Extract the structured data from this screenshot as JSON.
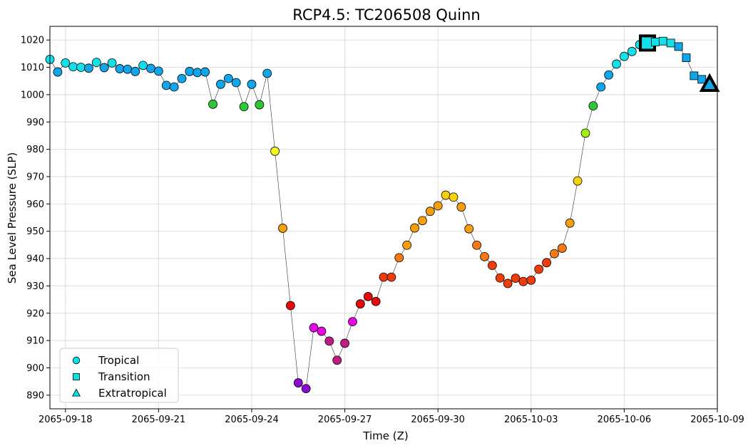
{
  "chart_data": {
    "type": "scatter",
    "title": "RCP4.5: TC206508 Quinn",
    "xlabel": "Time (Z)",
    "ylabel": "Sea Level Pressure (SLP)",
    "xlim": [
      "2065-09-17T12:00",
      "2065-10-09T00:00"
    ],
    "ylim": [
      885,
      1025
    ],
    "x_ticks": [
      "2065-09-18",
      "2065-09-21",
      "2065-09-24",
      "2065-09-27",
      "2065-09-30",
      "2065-10-03",
      "2065-10-06",
      "2065-10-09"
    ],
    "y_ticks": [
      890,
      900,
      910,
      920,
      930,
      940,
      950,
      960,
      970,
      980,
      990,
      1000,
      1010,
      1020
    ],
    "grid": true,
    "legend_position": "bottom-left",
    "legend": [
      {
        "label": "Tropical",
        "marker": "circle"
      },
      {
        "label": "Transition",
        "marker": "square"
      },
      {
        "label": "Extratropical",
        "marker": "triangle"
      }
    ],
    "line_color": "#333333",
    "marker_edge_color": "#000000",
    "legend_marker_color": "#00e5e5",
    "series": [
      {
        "name": "Tropical",
        "marker": "circle",
        "points": [
          {
            "t": "2065-09-17T12:00",
            "y": 1012.9,
            "c": "#14e0ea"
          },
          {
            "t": "2065-09-17T18:00",
            "y": 1008.3,
            "c": "#10a6ec"
          },
          {
            "t": "2065-09-18T00:00",
            "y": 1011.6,
            "c": "#14e0ea"
          },
          {
            "t": "2065-09-18T06:00",
            "y": 1010.2,
            "c": "#14e0ea"
          },
          {
            "t": "2065-09-18T12:00",
            "y": 1010.0,
            "c": "#14e0ea"
          },
          {
            "t": "2065-09-18T18:00",
            "y": 1009.7,
            "c": "#10a6ec"
          },
          {
            "t": "2065-09-19T00:00",
            "y": 1011.8,
            "c": "#14e0ea"
          },
          {
            "t": "2065-09-19T06:00",
            "y": 1009.9,
            "c": "#10a6ec"
          },
          {
            "t": "2065-09-19T12:00",
            "y": 1011.6,
            "c": "#14e0ea"
          },
          {
            "t": "2065-09-19T18:00",
            "y": 1009.5,
            "c": "#10a6ec"
          },
          {
            "t": "2065-09-20T00:00",
            "y": 1009.3,
            "c": "#10a6ec"
          },
          {
            "t": "2065-09-20T06:00",
            "y": 1008.5,
            "c": "#10a6ec"
          },
          {
            "t": "2065-09-20T12:00",
            "y": 1010.7,
            "c": "#14e0ea"
          },
          {
            "t": "2065-09-20T18:00",
            "y": 1009.6,
            "c": "#10a6ec"
          },
          {
            "t": "2065-09-21T00:00",
            "y": 1008.6,
            "c": "#10a6ec"
          },
          {
            "t": "2065-09-21T06:00",
            "y": 1003.4,
            "c": "#10a6ec"
          },
          {
            "t": "2065-09-21T12:00",
            "y": 1002.8,
            "c": "#10a6ec"
          },
          {
            "t": "2065-09-21T18:00",
            "y": 1005.9,
            "c": "#10a6ec"
          },
          {
            "t": "2065-09-22T00:00",
            "y": 1008.5,
            "c": "#10a6ec"
          },
          {
            "t": "2065-09-22T06:00",
            "y": 1008.1,
            "c": "#10a6ec"
          },
          {
            "t": "2065-09-22T12:00",
            "y": 1008.3,
            "c": "#10a6ec"
          },
          {
            "t": "2065-09-22T18:00",
            "y": 996.5,
            "c": "#2ec73a"
          },
          {
            "t": "2065-09-23T00:00",
            "y": 1003.8,
            "c": "#10a6ec"
          },
          {
            "t": "2065-09-23T06:00",
            "y": 1005.9,
            "c": "#10a6ec"
          },
          {
            "t": "2065-09-23T12:00",
            "y": 1004.4,
            "c": "#10a6ec"
          },
          {
            "t": "2065-09-23T18:00",
            "y": 995.6,
            "c": "#2ec73a"
          },
          {
            "t": "2065-09-24T00:00",
            "y": 1003.8,
            "c": "#10a6ec"
          },
          {
            "t": "2065-09-24T06:00",
            "y": 996.3,
            "c": "#2ec73a"
          },
          {
            "t": "2065-09-24T12:00",
            "y": 1007.8,
            "c": "#10a6ec"
          },
          {
            "t": "2065-09-24T18:00",
            "y": 979.3,
            "c": "#f5f520"
          },
          {
            "t": "2065-09-25T00:00",
            "y": 951.1,
            "c": "#f5a00a"
          },
          {
            "t": "2065-09-25T06:00",
            "y": 922.8,
            "c": "#e60a0a"
          },
          {
            "t": "2065-09-25T12:00",
            "y": 894.5,
            "c": "#8c0ad2"
          },
          {
            "t": "2065-09-25T18:00",
            "y": 892.4,
            "c": "#8c0ad2"
          },
          {
            "t": "2065-09-26T00:00",
            "y": 914.7,
            "c": "#e60ae6"
          },
          {
            "t": "2065-09-26T06:00",
            "y": 913.4,
            "c": "#e60ae6"
          },
          {
            "t": "2065-09-26T12:00",
            "y": 909.8,
            "c": "#be1e82"
          },
          {
            "t": "2065-09-26T18:00",
            "y": 902.8,
            "c": "#be1e82"
          },
          {
            "t": "2065-09-27T00:00",
            "y": 909.0,
            "c": "#be1e82"
          },
          {
            "t": "2065-09-27T06:00",
            "y": 916.9,
            "c": "#e60ae6"
          },
          {
            "t": "2065-09-27T12:00",
            "y": 923.4,
            "c": "#e60a0a"
          },
          {
            "t": "2065-09-27T18:00",
            "y": 926.1,
            "c": "#e60a0a"
          },
          {
            "t": "2065-09-28T00:00",
            "y": 924.3,
            "c": "#e60a0a"
          },
          {
            "t": "2065-09-28T06:00",
            "y": 933.2,
            "c": "#f03c0a"
          },
          {
            "t": "2065-09-28T12:00",
            "y": 933.2,
            "c": "#f03c0a"
          },
          {
            "t": "2065-09-28T18:00",
            "y": 940.3,
            "c": "#f57814"
          },
          {
            "t": "2065-09-29T00:00",
            "y": 944.9,
            "c": "#f5a00a"
          },
          {
            "t": "2065-09-29T06:00",
            "y": 951.2,
            "c": "#f5a00a"
          },
          {
            "t": "2065-09-29T12:00",
            "y": 953.9,
            "c": "#f5a00a"
          },
          {
            "t": "2065-09-29T18:00",
            "y": 957.3,
            "c": "#f5a00a"
          },
          {
            "t": "2065-09-30T00:00",
            "y": 959.3,
            "c": "#f5a00a"
          },
          {
            "t": "2065-09-30T06:00",
            "y": 963.2,
            "c": "#f5d20a"
          },
          {
            "t": "2065-09-30T12:00",
            "y": 962.5,
            "c": "#f5d20a"
          },
          {
            "t": "2065-09-30T18:00",
            "y": 958.9,
            "c": "#f5a00a"
          },
          {
            "t": "2065-10-01T00:00",
            "y": 950.9,
            "c": "#f5a00a"
          },
          {
            "t": "2065-10-01T06:00",
            "y": 944.9,
            "c": "#f57814"
          },
          {
            "t": "2065-10-01T12:00",
            "y": 940.7,
            "c": "#f57814"
          },
          {
            "t": "2065-10-01T18:00",
            "y": 937.5,
            "c": "#f03c0a"
          },
          {
            "t": "2065-10-02T00:00",
            "y": 932.9,
            "c": "#f03c0a"
          },
          {
            "t": "2065-10-02T06:00",
            "y": 930.9,
            "c": "#f03c0a"
          },
          {
            "t": "2065-10-02T12:00",
            "y": 932.8,
            "c": "#f03c0a"
          },
          {
            "t": "2065-10-02T18:00",
            "y": 931.6,
            "c": "#f03c0a"
          },
          {
            "t": "2065-10-03T00:00",
            "y": 932.1,
            "c": "#f03c0a"
          },
          {
            "t": "2065-10-03T06:00",
            "y": 936.1,
            "c": "#f03c0a"
          },
          {
            "t": "2065-10-03T12:00",
            "y": 938.5,
            "c": "#f03c0a"
          },
          {
            "t": "2065-10-03T18:00",
            "y": 941.8,
            "c": "#f57814"
          },
          {
            "t": "2065-10-04T00:00",
            "y": 943.8,
            "c": "#f57814"
          },
          {
            "t": "2065-10-04T06:00",
            "y": 953.0,
            "c": "#f5a00a"
          },
          {
            "t": "2065-10-04T12:00",
            "y": 968.4,
            "c": "#f5d20a"
          },
          {
            "t": "2065-10-04T18:00",
            "y": 985.9,
            "c": "#a0f014"
          },
          {
            "t": "2065-10-05T00:00",
            "y": 995.9,
            "c": "#2ec73a"
          },
          {
            "t": "2065-10-05T06:00",
            "y": 1002.8,
            "c": "#10a6ec"
          },
          {
            "t": "2065-10-05T12:00",
            "y": 1007.2,
            "c": "#10a6ec"
          },
          {
            "t": "2065-10-05T18:00",
            "y": 1011.2,
            "c": "#14e0ea"
          },
          {
            "t": "2065-10-06T00:00",
            "y": 1014.0,
            "c": "#14e0ea"
          },
          {
            "t": "2065-10-06T06:00",
            "y": 1015.8,
            "c": "#14e0ea"
          },
          {
            "t": "2065-10-06T12:00",
            "y": 1018.3,
            "c": "#14e0ea"
          }
        ]
      },
      {
        "name": "Transition",
        "marker": "square",
        "points": [
          {
            "t": "2065-10-06T18:00",
            "y": 1018.9,
            "c": "#14e0ea",
            "highlight": true
          },
          {
            "t": "2065-10-07T00:00",
            "y": 1019.3,
            "c": "#14e0ea"
          },
          {
            "t": "2065-10-07T06:00",
            "y": 1019.6,
            "c": "#14e0ea"
          },
          {
            "t": "2065-10-07T12:00",
            "y": 1018.9,
            "c": "#14e0ea"
          },
          {
            "t": "2065-10-07T18:00",
            "y": 1017.6,
            "c": "#10a6ec"
          },
          {
            "t": "2065-10-08T00:00",
            "y": 1013.5,
            "c": "#10a6ec"
          },
          {
            "t": "2065-10-08T06:00",
            "y": 1006.9,
            "c": "#10a6ec"
          },
          {
            "t": "2065-10-08T12:00",
            "y": 1005.6,
            "c": "#10a6ec"
          }
        ]
      },
      {
        "name": "Extratropical",
        "marker": "triangle",
        "points": [
          {
            "t": "2065-10-08T18:00",
            "y": 1003.8,
            "c": "#10a6ec",
            "highlight": true
          }
        ]
      }
    ]
  }
}
